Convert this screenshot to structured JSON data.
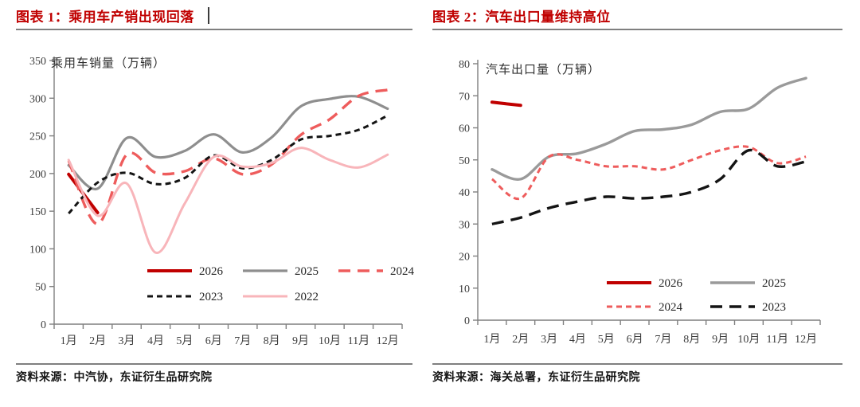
{
  "page": {
    "background": "#ffffff",
    "accent_red": "#C00000"
  },
  "chart_data": [
    {
      "type": "line",
      "title": "图表 1：乘用车产销出现回落",
      "axis_label": "乘用车销量（万辆）",
      "source": "资料来源：中汽协，东证衍生品研究院",
      "categories": [
        "1月",
        "2月",
        "3月",
        "4月",
        "5月",
        "6月",
        "7月",
        "8月",
        "9月",
        "10月",
        "11月",
        "12月"
      ],
      "ylim": [
        0,
        350
      ],
      "ytick_step": 50,
      "grid": false,
      "legend_position": "inside-bottom-center",
      "legend_rows": [
        [
          "2026",
          "2025",
          "2024"
        ],
        [
          "2023",
          "2022"
        ]
      ],
      "series": [
        {
          "name": "2026",
          "color": "#C00000",
          "line_style": "solid",
          "width": 4,
          "values": [
            199,
            148
          ]
        },
        {
          "name": "2025",
          "color": "#8E8E8E",
          "line_style": "solid",
          "width": 3.2,
          "values": [
            211,
            180,
            247,
            222,
            230,
            252,
            228,
            248,
            289,
            299,
            302,
            286
          ]
        },
        {
          "name": "2024",
          "color": "#EE5C5C",
          "line_style": "long-dash",
          "width": 3.4,
          "values": [
            217,
            133,
            225,
            201,
            203,
            220,
            199,
            212,
            251,
            272,
            303,
            311
          ]
        },
        {
          "name": "2023",
          "color": "#141414",
          "line_style": "short-dash",
          "width": 3,
          "values": [
            147,
            188,
            201,
            186,
            194,
            224,
            207,
            218,
            245,
            250,
            258,
            277
          ]
        },
        {
          "name": "2022",
          "color": "#F8B5BA",
          "line_style": "solid",
          "width": 3,
          "values": [
            218,
            144,
            187,
            95,
            160,
            222,
            209,
            214,
            234,
            218,
            208,
            225
          ]
        }
      ]
    },
    {
      "type": "line",
      "title": "图表 2：汽车出口量维持高位",
      "axis_label": "汽车出口量（万辆）",
      "source": "资料来源：海关总署，东证衍生品研究院",
      "categories": [
        "1月",
        "2月",
        "3月",
        "4月",
        "5月",
        "6月",
        "7月",
        "8月",
        "9月",
        "10月",
        "11月",
        "12月"
      ],
      "ylim": [
        0,
        80
      ],
      "ytick_step": 10,
      "grid": false,
      "legend_position": "inside-bottom-center",
      "legend_rows": [
        [
          "2026",
          "2025"
        ],
        [
          "2024",
          "2023"
        ]
      ],
      "series": [
        {
          "name": "2026",
          "color": "#C00000",
          "line_style": "solid",
          "width": 4,
          "values": [
            68,
            67
          ]
        },
        {
          "name": "2025",
          "color": "#9A9A9A",
          "line_style": "solid",
          "width": 3.4,
          "values": [
            47,
            44,
            51,
            52,
            55,
            59,
            59.5,
            61,
            65,
            66,
            72.5,
            75.5
          ]
        },
        {
          "name": "2024",
          "color": "#EE5C5C",
          "line_style": "short-dash",
          "width": 3,
          "values": [
            44,
            38,
            51,
            50,
            48,
            48,
            47,
            50,
            53,
            54,
            49,
            51
          ]
        },
        {
          "name": "2023",
          "color": "#141414",
          "line_style": "long-dash",
          "width": 3.4,
          "values": [
            30,
            32,
            35,
            37,
            38.5,
            38,
            38.5,
            40,
            44,
            53,
            48,
            49.5
          ]
        }
      ]
    }
  ]
}
